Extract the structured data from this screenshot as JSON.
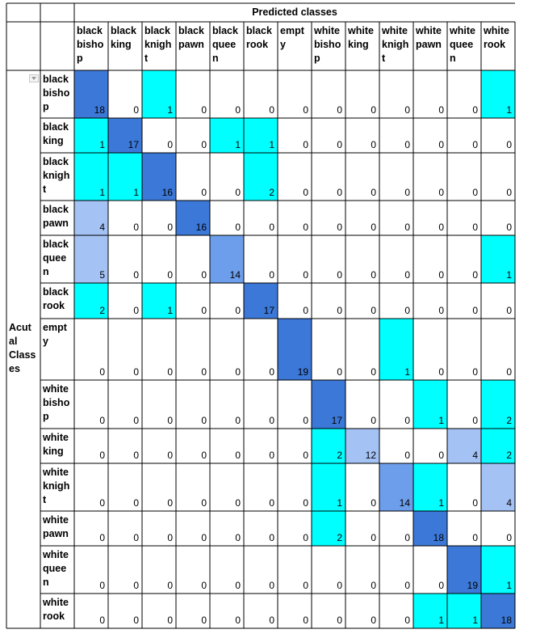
{
  "chart_data": {
    "type": "heatmap",
    "title": "Predicted classes",
    "ylabel": "Acutal Classes",
    "row_labels": [
      "black bishop",
      "black king",
      "black knight",
      "black pawn",
      "black queen",
      "black rook",
      "empty",
      "white bishop",
      "white king",
      "white knight",
      "white pawn",
      "white queen",
      "white rook"
    ],
    "col_labels": [
      "black bishop",
      "black king",
      "black knight",
      "black pawn",
      "black queen",
      "black rook",
      "empty",
      "white bishop",
      "white king",
      "white knight",
      "white pawn",
      "white queen",
      "white rook"
    ],
    "row_label_lines": [
      [
        "black",
        "bisho",
        "p"
      ],
      [
        "black",
        "king"
      ],
      [
        "black",
        "knigh",
        "t"
      ],
      [
        "black",
        "pawn"
      ],
      [
        "black",
        "quee",
        "n"
      ],
      [
        "black",
        "rook"
      ],
      [
        "empt",
        "y"
      ],
      [
        "white",
        "bisho",
        "p"
      ],
      [
        "white",
        "king"
      ],
      [
        "white",
        "knigh",
        "t"
      ],
      [
        "white",
        "pawn"
      ],
      [
        "white",
        "quee",
        "n"
      ],
      [
        "white",
        "rook"
      ]
    ],
    "col_label_lines": [
      [
        "black",
        "bisho",
        "p"
      ],
      [
        "black",
        "king"
      ],
      [
        "black",
        "knigh",
        "t"
      ],
      [
        "black",
        "pawn"
      ],
      [
        "black",
        "quee",
        "n"
      ],
      [
        "black",
        "rook"
      ],
      [
        "empt",
        "y"
      ],
      [
        "white",
        "bisho",
        "p"
      ],
      [
        "white",
        "king"
      ],
      [
        "white",
        "knigh",
        "t"
      ],
      [
        "white",
        "pawn"
      ],
      [
        "white",
        "quee",
        "n"
      ],
      [
        "white",
        "rook"
      ]
    ],
    "ylabel_lines": [
      "Acut",
      "al",
      "Class",
      "es"
    ],
    "values": [
      [
        18,
        0,
        1,
        0,
        0,
        0,
        0,
        0,
        0,
        0,
        0,
        0,
        1
      ],
      [
        1,
        17,
        0,
        0,
        1,
        1,
        0,
        0,
        0,
        0,
        0,
        0,
        0
      ],
      [
        1,
        1,
        16,
        0,
        0,
        2,
        0,
        0,
        0,
        0,
        0,
        0,
        0
      ],
      [
        4,
        0,
        0,
        16,
        0,
        0,
        0,
        0,
        0,
        0,
        0,
        0,
        0
      ],
      [
        5,
        0,
        0,
        0,
        14,
        0,
        0,
        0,
        0,
        0,
        0,
        0,
        1
      ],
      [
        2,
        0,
        1,
        0,
        0,
        17,
        0,
        0,
        0,
        0,
        0,
        0,
        0
      ],
      [
        0,
        0,
        0,
        0,
        0,
        0,
        19,
        0,
        0,
        1,
        0,
        0,
        0
      ],
      [
        0,
        0,
        0,
        0,
        0,
        0,
        0,
        17,
        0,
        0,
        1,
        0,
        2
      ],
      [
        0,
        0,
        0,
        0,
        0,
        0,
        0,
        2,
        12,
        0,
        0,
        4,
        2
      ],
      [
        0,
        0,
        0,
        0,
        0,
        0,
        0,
        1,
        0,
        14,
        1,
        0,
        4
      ],
      [
        0,
        0,
        0,
        0,
        0,
        0,
        0,
        2,
        0,
        0,
        18,
        0,
        0
      ],
      [
        0,
        0,
        0,
        0,
        0,
        0,
        0,
        0,
        0,
        0,
        0,
        19,
        1
      ],
      [
        0,
        0,
        0,
        0,
        0,
        0,
        0,
        0,
        0,
        0,
        1,
        1,
        18
      ]
    ],
    "colors": {
      "light": "#a4c2f4",
      "medium": "#6d9eeb",
      "dark": "#3c78d8",
      "cyan": "#00ffff",
      "grid": "#000000"
    }
  }
}
